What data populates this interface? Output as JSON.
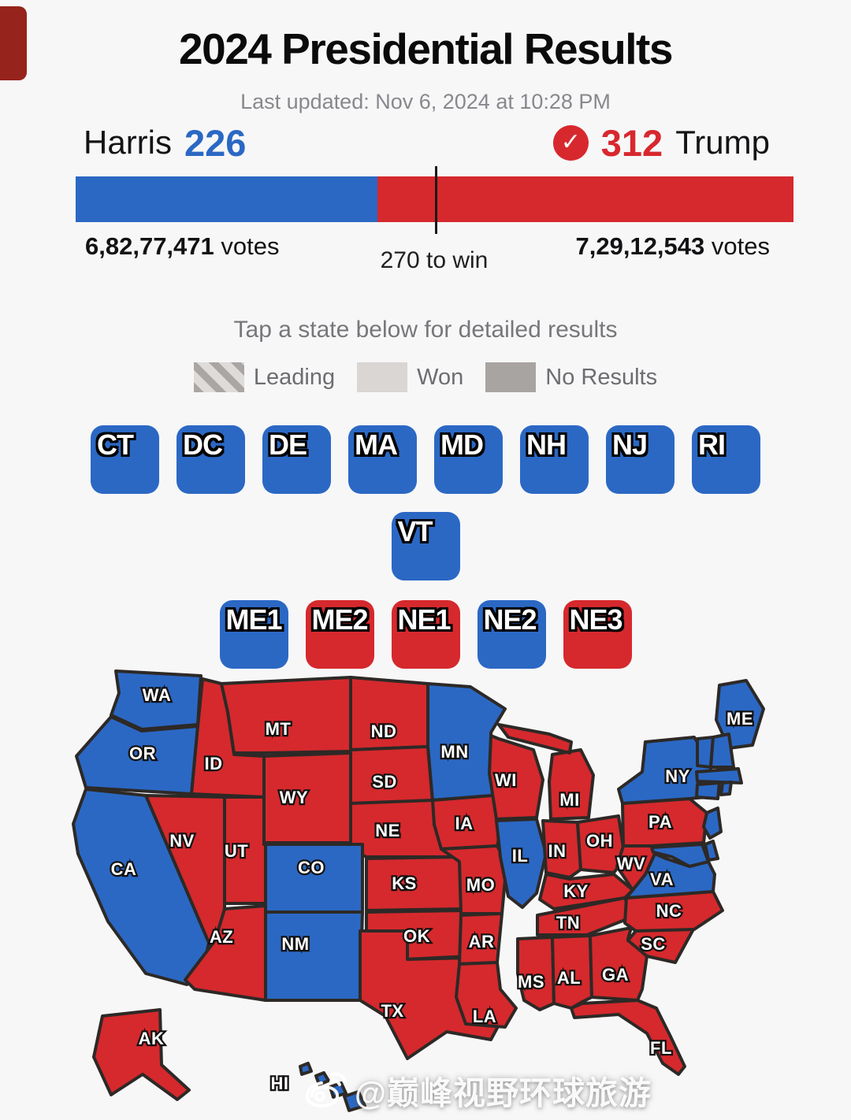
{
  "page": {
    "title": "2024 Presidential Results",
    "last_updated": "Last updated: Nov 6, 2024 at 10:28 PM",
    "tap_hint": "Tap a state below for detailed results"
  },
  "colors": {
    "dem": "#2b68c4",
    "rep": "#d5292d"
  },
  "scoreboard": {
    "harris": {
      "name": "Harris",
      "ev": 226,
      "votes": "6,82,77,471",
      "votes_suffix": "votes"
    },
    "trump": {
      "name": "Trump",
      "ev": 312,
      "votes": "7,29,12,543",
      "votes_suffix": "votes",
      "winner_check": "✓"
    },
    "total_ev": 538,
    "threshold_label": "270 to win"
  },
  "legend": {
    "leading": "Leading",
    "won": "Won",
    "no_results": "No Results"
  },
  "districts": {
    "rows": [
      [
        {
          "label": "CT",
          "party": "dem"
        },
        {
          "label": "DC",
          "party": "dem"
        },
        {
          "label": "DE",
          "party": "dem"
        },
        {
          "label": "MA",
          "party": "dem"
        },
        {
          "label": "MD",
          "party": "dem"
        },
        {
          "label": "NH",
          "party": "dem"
        },
        {
          "label": "NJ",
          "party": "dem"
        },
        {
          "label": "RI",
          "party": "dem"
        }
      ],
      [
        {
          "label": "VT",
          "party": "dem"
        }
      ],
      [
        {
          "label": "ME1",
          "party": "dem"
        },
        {
          "label": "ME2",
          "party": "rep"
        },
        {
          "label": "NE1",
          "party": "rep"
        },
        {
          "label": "NE2",
          "party": "dem"
        },
        {
          "label": "NE3",
          "party": "rep"
        }
      ]
    ]
  },
  "map": {
    "states": {
      "WA": {
        "label": "WA",
        "party": "dem"
      },
      "OR": {
        "label": "OR",
        "party": "dem"
      },
      "CA": {
        "label": "CA",
        "party": "dem"
      },
      "ID": {
        "label": "ID",
        "party": "rep"
      },
      "NV": {
        "label": "NV",
        "party": "rep"
      },
      "UT": {
        "label": "UT",
        "party": "rep"
      },
      "AZ": {
        "label": "AZ",
        "party": "rep"
      },
      "MT": {
        "label": "MT",
        "party": "rep"
      },
      "WY": {
        "label": "WY",
        "party": "rep"
      },
      "CO": {
        "label": "CO",
        "party": "dem"
      },
      "NM": {
        "label": "NM",
        "party": "dem"
      },
      "ND": {
        "label": "ND",
        "party": "rep"
      },
      "SD": {
        "label": "SD",
        "party": "rep"
      },
      "NE": {
        "label": "NE",
        "party": "rep"
      },
      "KS": {
        "label": "KS",
        "party": "rep"
      },
      "OK": {
        "label": "OK",
        "party": "rep"
      },
      "TX": {
        "label": "TX",
        "party": "rep"
      },
      "MN": {
        "label": "MN",
        "party": "dem"
      },
      "IA": {
        "label": "IA",
        "party": "rep"
      },
      "MO": {
        "label": "MO",
        "party": "rep"
      },
      "AR": {
        "label": "AR",
        "party": "rep"
      },
      "LA": {
        "label": "LA",
        "party": "rep"
      },
      "WI": {
        "label": "WI",
        "party": "rep"
      },
      "IL": {
        "label": "IL",
        "party": "dem"
      },
      "MI": {
        "label": "MI",
        "party": "rep"
      },
      "IN": {
        "label": "IN",
        "party": "rep"
      },
      "OH": {
        "label": "OH",
        "party": "rep"
      },
      "KY": {
        "label": "KY",
        "party": "rep"
      },
      "TN": {
        "label": "TN",
        "party": "rep"
      },
      "MS": {
        "label": "MS",
        "party": "rep"
      },
      "AL": {
        "label": "AL",
        "party": "rep"
      },
      "GA": {
        "label": "GA",
        "party": "rep"
      },
      "FL": {
        "label": "FL",
        "party": "rep"
      },
      "SC": {
        "label": "SC",
        "party": "rep"
      },
      "NC": {
        "label": "NC",
        "party": "rep"
      },
      "VA": {
        "label": "VA",
        "party": "dem"
      },
      "WV": {
        "label": "WV",
        "party": "rep"
      },
      "PA": {
        "label": "PA",
        "party": "rep"
      },
      "NY": {
        "label": "NY",
        "party": "dem"
      },
      "ME": {
        "label": "ME",
        "party": "dem"
      },
      "VT": {
        "label": "",
        "party": "dem"
      },
      "NH": {
        "label": "",
        "party": "dem"
      },
      "MA": {
        "label": "",
        "party": "dem"
      },
      "CT": {
        "label": "",
        "party": "dem"
      },
      "RI": {
        "label": "",
        "party": "dem"
      },
      "NJ": {
        "label": "",
        "party": "dem"
      },
      "DE": {
        "label": "",
        "party": "dem"
      },
      "MD": {
        "label": "",
        "party": "dem"
      },
      "AK": {
        "label": "AK",
        "party": "rep"
      },
      "HI": {
        "label": "HI",
        "party": "dem"
      }
    }
  },
  "watermark": {
    "handle": "@巅峰视野环球旅游"
  }
}
